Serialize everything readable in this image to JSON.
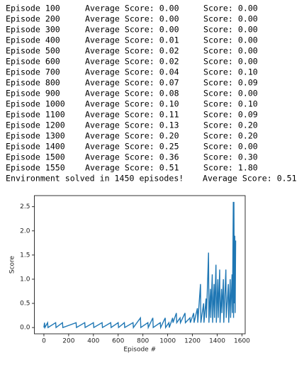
{
  "log": {
    "lines": [
      [
        "Episode 100",
        "Average Score: 0.00",
        "Score: 0.00"
      ],
      [
        "Episode 200",
        "Average Score: 0.00",
        "Score: 0.00"
      ],
      [
        "Episode 300",
        "Average Score: 0.00",
        "Score: 0.00"
      ],
      [
        "Episode 400",
        "Average Score: 0.01",
        "Score: 0.00"
      ],
      [
        "Episode 500",
        "Average Score: 0.02",
        "Score: 0.00"
      ],
      [
        "Episode 600",
        "Average Score: 0.02",
        "Score: 0.00"
      ],
      [
        "Episode 700",
        "Average Score: 0.04",
        "Score: 0.10"
      ],
      [
        "Episode 800",
        "Average Score: 0.07",
        "Score: 0.09"
      ],
      [
        "Episode 900",
        "Average Score: 0.08",
        "Score: 0.00"
      ],
      [
        "Episode 1000",
        "Average Score: 0.10",
        "Score: 0.10"
      ],
      [
        "Episode 1100",
        "Average Score: 0.11",
        "Score: 0.09"
      ],
      [
        "Episode 1200",
        "Average Score: 0.13",
        "Score: 0.20"
      ],
      [
        "Episode 1300",
        "Average Score: 0.20",
        "Score: 0.20"
      ],
      [
        "Episode 1400",
        "Average Score: 0.25",
        "Score: 0.00"
      ],
      [
        "Episode 1500",
        "Average Score: 0.36",
        "Score: 0.30"
      ],
      [
        "Episode 1550",
        "Average Score: 0.51",
        "Score: 1.80"
      ]
    ],
    "solved": [
      "Environment solved in 1450 episodes!",
      "Average Score: 0.51"
    ]
  },
  "chart_data": {
    "type": "line",
    "xlabel": "Episode #",
    "ylabel": "Score",
    "x": [
      0,
      5,
      8,
      30,
      33,
      95,
      98,
      150,
      153,
      260,
      263,
      330,
      333,
      400,
      403,
      470,
      473,
      540,
      543,
      600,
      603,
      650,
      653,
      720,
      723,
      780,
      783,
      840,
      843,
      880,
      883,
      940,
      943,
      980,
      983,
      1010,
      1013,
      1040,
      1043,
      1070,
      1073,
      1100,
      1103,
      1140,
      1143,
      1180,
      1183,
      1210,
      1213,
      1240,
      1243,
      1265,
      1268,
      1290,
      1293,
      1310,
      1313,
      1330,
      1333,
      1345,
      1348,
      1360,
      1363,
      1375,
      1378,
      1390,
      1393,
      1405,
      1408,
      1420,
      1423,
      1435,
      1438,
      1450,
      1453,
      1470,
      1473,
      1490,
      1493,
      1505,
      1508,
      1520,
      1523,
      1530,
      1532,
      1535,
      1538,
      1542,
      1545,
      1549
    ],
    "series": [
      {
        "name": "Score",
        "color": "#1f77b4",
        "values": [
          0,
          0.1,
          0,
          0.1,
          0,
          0.1,
          0,
          0.1,
          0,
          0.1,
          0,
          0.1,
          0,
          0.1,
          0,
          0.1,
          0,
          0.1,
          0,
          0.1,
          0,
          0.1,
          0,
          0.1,
          0,
          0.2,
          0,
          0.1,
          0,
          0.2,
          0,
          0.1,
          0,
          0.2,
          0,
          0.1,
          0,
          0.2,
          0.1,
          0.3,
          0.1,
          0.2,
          0.1,
          0.3,
          0.1,
          0.2,
          0.1,
          0.3,
          0.1,
          0.4,
          0.1,
          0.9,
          0.1,
          0.5,
          0.1,
          0.6,
          0.2,
          1.55,
          0.1,
          0.8,
          0.2,
          1.1,
          0.1,
          0.9,
          0.2,
          1.3,
          0.1,
          1.0,
          0.2,
          1.2,
          0.1,
          0.8,
          0.3,
          1.0,
          0.1,
          1.2,
          0.2,
          0.9,
          0.1,
          1.0,
          0.2,
          1.1,
          0.3,
          2.6,
          0.2,
          2.6,
          0.5,
          1.9,
          0.3,
          1.8
        ]
      }
    ],
    "xlim": [
      -77,
      1626
    ],
    "ylim": [
      -0.13,
      2.73
    ],
    "xticks": [
      0,
      200,
      400,
      600,
      800,
      1000,
      1200,
      1400,
      1600
    ],
    "yticks": [
      {
        "value": 0,
        "label": "0.0"
      },
      0.5,
      {
        "value": 1,
        "label": "1.0"
      },
      1.5,
      {
        "value": 2,
        "label": "2.0"
      },
      2.5
    ]
  }
}
